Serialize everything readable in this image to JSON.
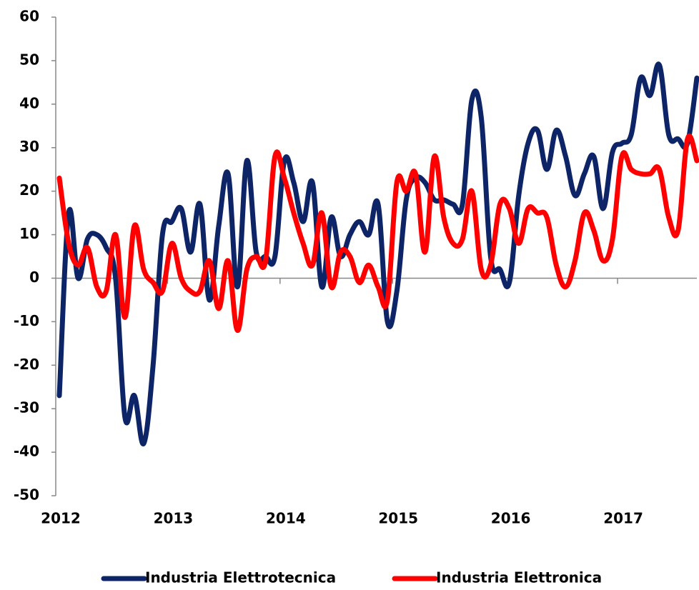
{
  "chart_data": {
    "type": "line",
    "categories": [
      "2012",
      null,
      null,
      null,
      null,
      null,
      null,
      null,
      null,
      null,
      null,
      null,
      "2013",
      null,
      null,
      null,
      null,
      null,
      null,
      null,
      null,
      null,
      null,
      null,
      "2014",
      null,
      null,
      null,
      null,
      null,
      null,
      null,
      null,
      null,
      null,
      null,
      "2015",
      null,
      null,
      null,
      null,
      null,
      null,
      null,
      null,
      null,
      null,
      null,
      "2016",
      null,
      null,
      null,
      null,
      null,
      null,
      null,
      null,
      null,
      null,
      null,
      "2017",
      null,
      null,
      null,
      null,
      null,
      null,
      null,
      null
    ],
    "series": [
      {
        "name": "Industria Elettrotecnica",
        "color": "#0d2566",
        "values": [
          -27,
          15,
          0,
          9,
          10,
          7,
          0,
          -32,
          -27,
          -38,
          -20,
          10,
          13,
          16,
          6,
          17,
          -5,
          12,
          24,
          -2,
          27,
          6,
          5,
          5,
          27,
          22,
          13,
          22,
          -2,
          14,
          5,
          10,
          13,
          10,
          17,
          -10,
          -3,
          18,
          23,
          22,
          18,
          18,
          17,
          17,
          41,
          37,
          5,
          2,
          -1,
          19,
          31,
          34,
          25,
          34,
          28,
          19,
          24,
          28,
          16,
          29,
          31,
          33,
          46,
          42,
          49,
          33,
          32,
          31,
          46
        ]
      },
      {
        "name": "Industria Elettronica",
        "color": "#ff0000",
        "values": [
          23,
          8,
          3,
          7,
          -2,
          -3,
          10,
          -9,
          12,
          2,
          -1,
          -3,
          8,
          0,
          -3,
          -3,
          4,
          -7,
          4,
          -12,
          2,
          5,
          4,
          28,
          23,
          15,
          8,
          3,
          15,
          -2,
          6,
          5,
          -1,
          3,
          -2,
          -5,
          22,
          20,
          24,
          6,
          28,
          14,
          8,
          9,
          20,
          2,
          3,
          17,
          16,
          8,
          16,
          15,
          14,
          3,
          -2,
          4,
          15,
          11,
          4,
          9,
          28,
          25,
          24,
          24,
          25,
          14,
          11,
          32,
          27
        ]
      }
    ],
    "ylim": [
      -50,
      60
    ],
    "yticks": [
      -50,
      -40,
      -30,
      -20,
      -10,
      0,
      10,
      20,
      30,
      40,
      50,
      60
    ],
    "legend": "bottom"
  }
}
